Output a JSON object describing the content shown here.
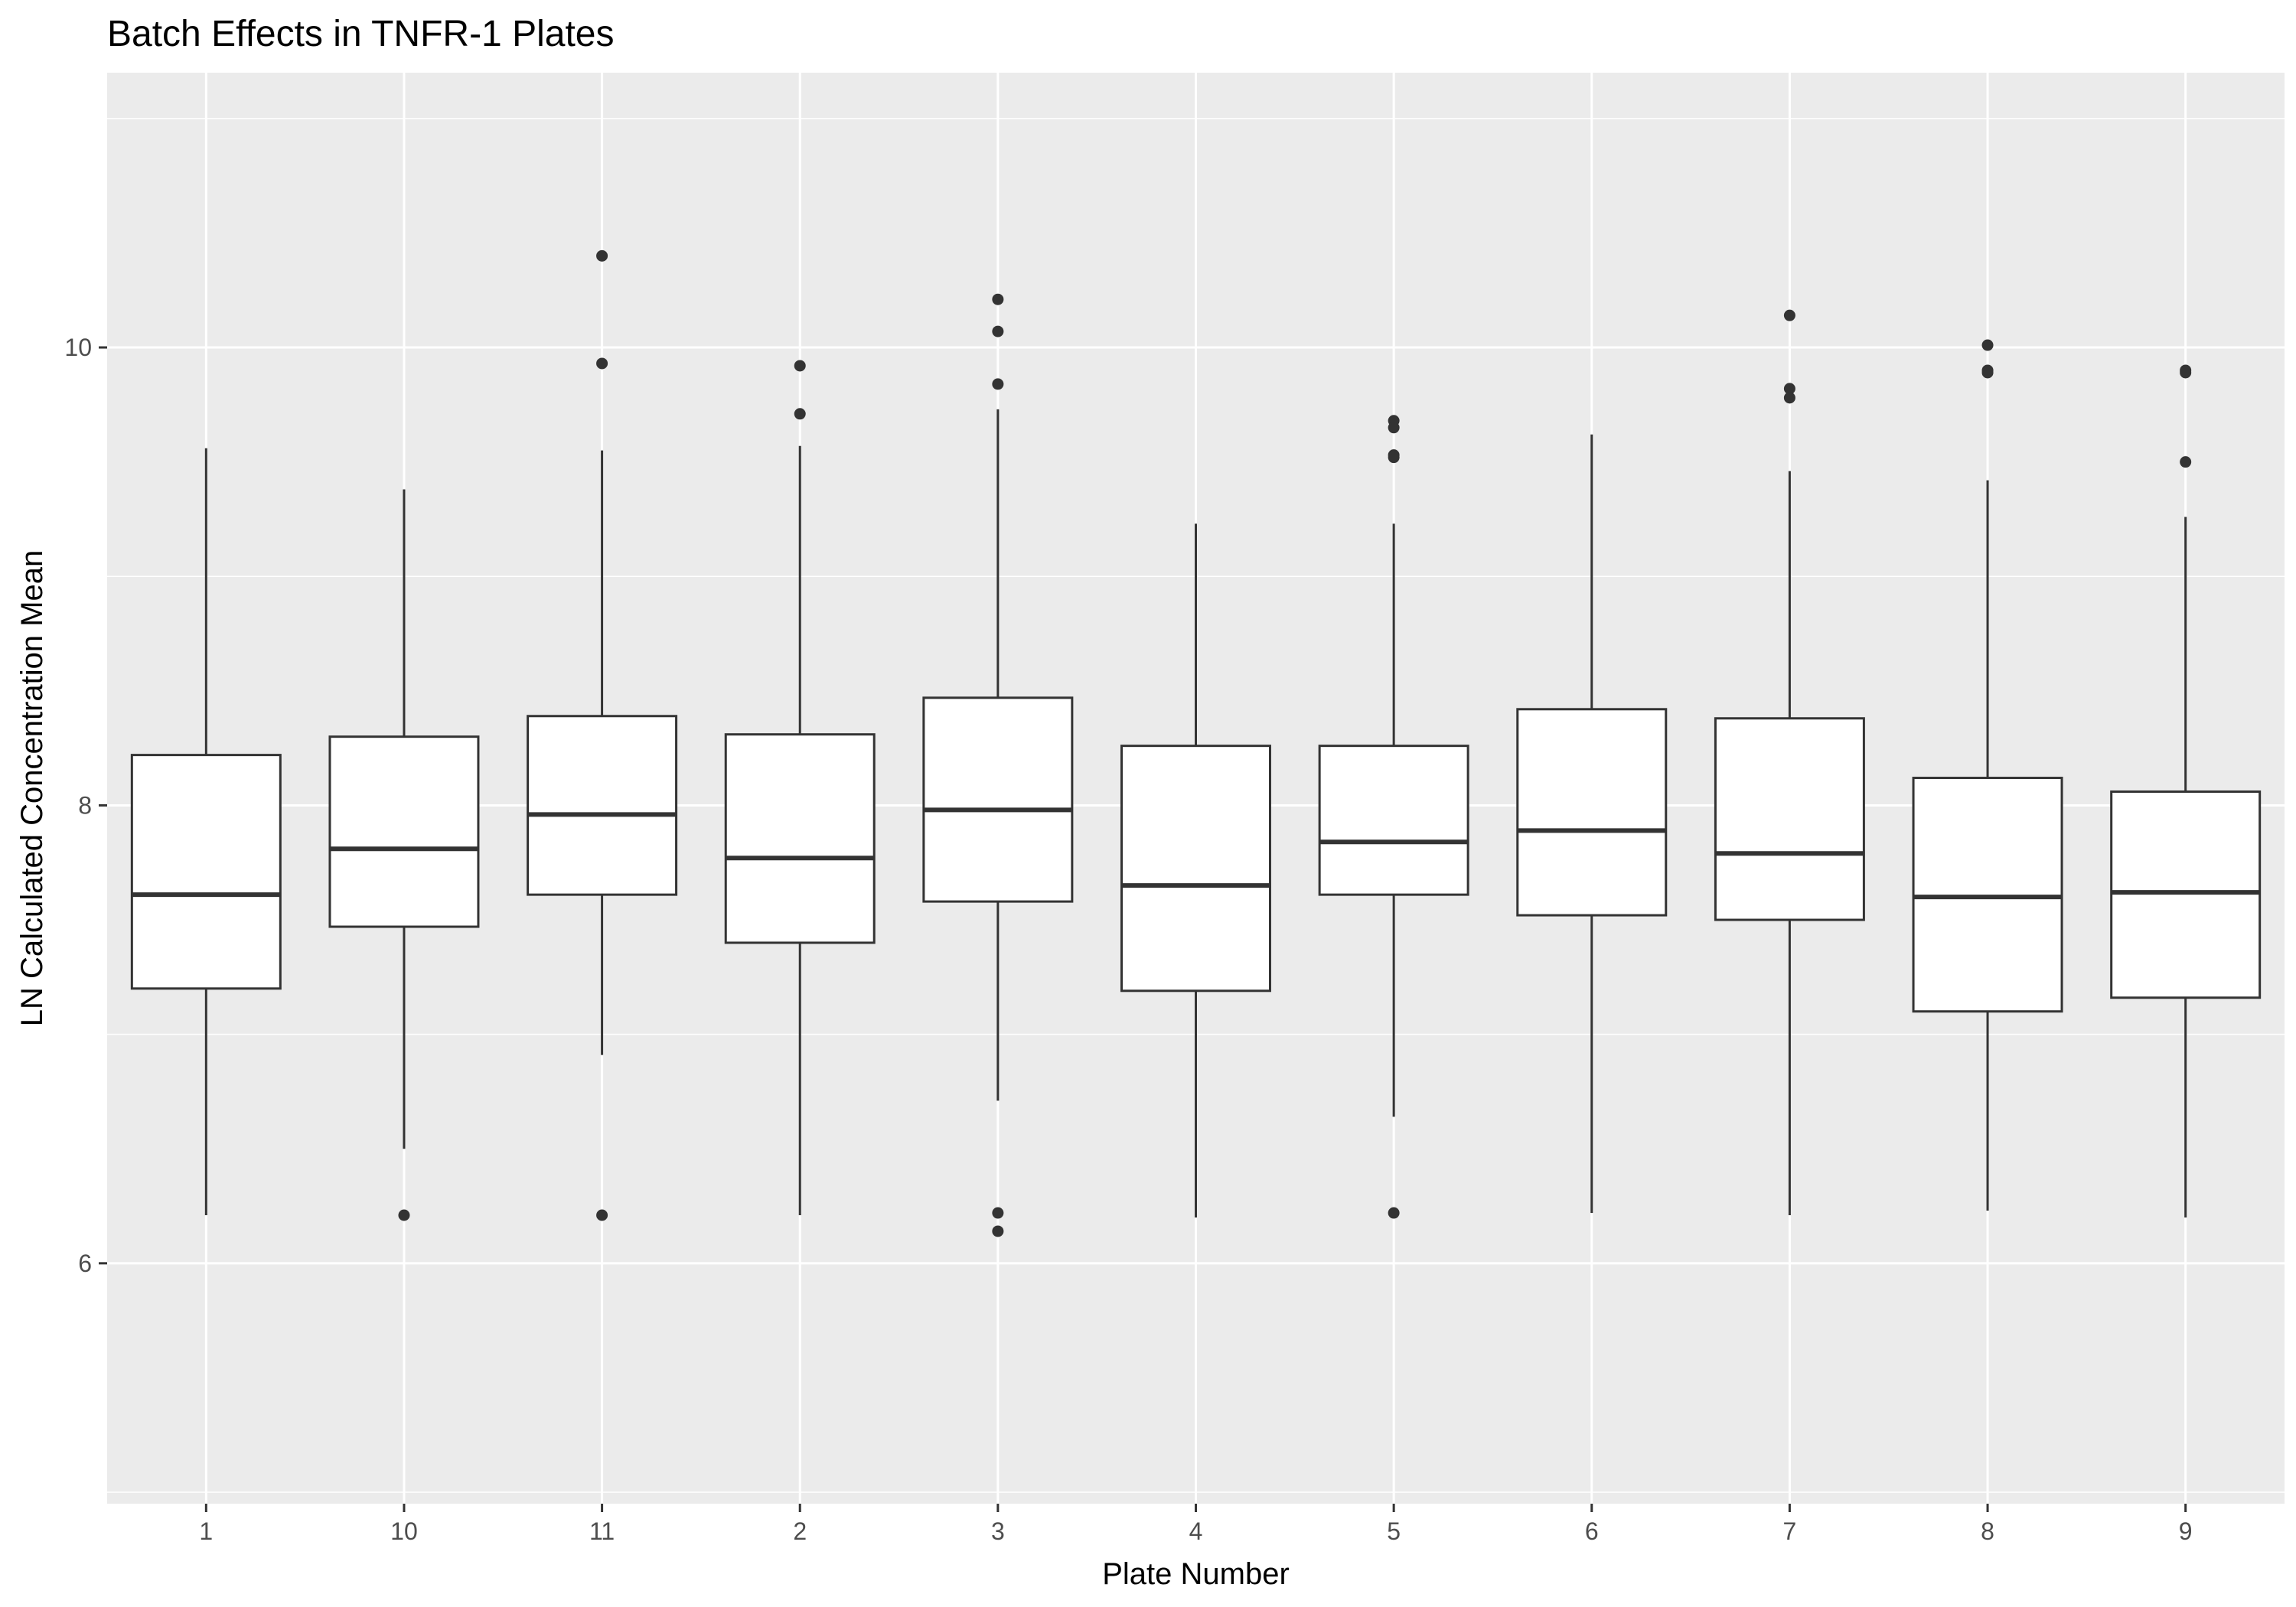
{
  "chart_data": {
    "type": "boxplot",
    "title": "Batch Effects in TNFR-1 Plates",
    "xlabel": "Plate Number",
    "ylabel": "LN Calculated Concentration Mean",
    "ylim": [
      4.95,
      11.2
    ],
    "y_ticks": [
      6,
      8,
      10
    ],
    "grid": true,
    "colors": {
      "panel_background": "#ebebeb",
      "grid_major": "#ffffff",
      "box_fill": "#ffffff",
      "box_line": "#333333",
      "outlier": "#333333"
    },
    "categories": [
      "1",
      "10",
      "11",
      "2",
      "3",
      "4",
      "5",
      "6",
      "7",
      "8",
      "9"
    ],
    "boxes": [
      {
        "category": "1",
        "whisker_low": 6.21,
        "q1": 7.2,
        "median": 7.61,
        "q3": 8.22,
        "whisker_high": 9.56,
        "outliers": []
      },
      {
        "category": "10",
        "whisker_low": 6.5,
        "q1": 7.47,
        "median": 7.81,
        "q3": 8.3,
        "whisker_high": 9.38,
        "outliers": [
          6.21
        ]
      },
      {
        "category": "11",
        "whisker_low": 6.91,
        "q1": 7.61,
        "median": 7.96,
        "q3": 8.39,
        "whisker_high": 9.55,
        "outliers": [
          10.4,
          9.93,
          6.21
        ]
      },
      {
        "category": "2",
        "whisker_low": 6.21,
        "q1": 7.4,
        "median": 7.77,
        "q3": 8.31,
        "whisker_high": 9.57,
        "outliers": [
          9.92,
          9.71
        ]
      },
      {
        "category": "3",
        "whisker_low": 6.71,
        "q1": 7.58,
        "median": 7.98,
        "q3": 8.47,
        "whisker_high": 9.73,
        "outliers": [
          10.21,
          10.07,
          9.84,
          6.22,
          6.14
        ]
      },
      {
        "category": "4",
        "whisker_low": 6.2,
        "q1": 7.19,
        "median": 7.65,
        "q3": 8.26,
        "whisker_high": 9.23,
        "outliers": []
      },
      {
        "category": "5",
        "whisker_low": 6.64,
        "q1": 7.61,
        "median": 7.84,
        "q3": 8.26,
        "whisker_high": 9.23,
        "outliers": [
          9.68,
          9.65,
          9.53,
          9.52,
          6.22
        ]
      },
      {
        "category": "6",
        "whisker_low": 6.22,
        "q1": 7.52,
        "median": 7.89,
        "q3": 8.42,
        "whisker_high": 9.62,
        "outliers": []
      },
      {
        "category": "7",
        "whisker_low": 6.21,
        "q1": 7.5,
        "median": 7.79,
        "q3": 8.38,
        "whisker_high": 9.46,
        "outliers": [
          10.14,
          9.82,
          9.78
        ]
      },
      {
        "category": "8",
        "whisker_low": 6.23,
        "q1": 7.1,
        "median": 7.6,
        "q3": 8.12,
        "whisker_high": 9.42,
        "outliers": [
          10.01,
          9.9,
          9.89
        ]
      },
      {
        "category": "9",
        "whisker_low": 6.2,
        "q1": 7.16,
        "median": 7.62,
        "q3": 8.06,
        "whisker_high": 9.26,
        "outliers": [
          9.9,
          9.89,
          9.5
        ]
      }
    ]
  }
}
